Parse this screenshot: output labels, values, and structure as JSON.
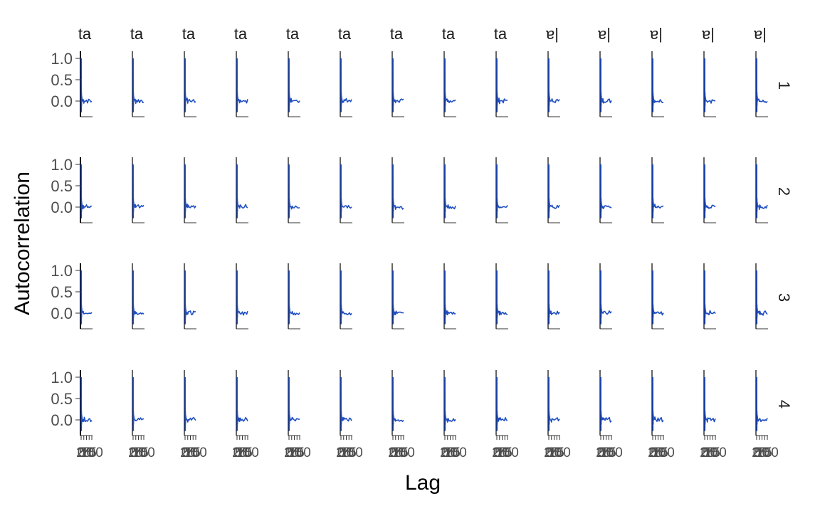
{
  "chart_data": {
    "type": "line",
    "title": "",
    "xlabel": "Lag",
    "ylabel": "Autocorrelation",
    "ylim": [
      -0.35,
      1.05
    ],
    "yticks": [
      "1.0",
      "0.5",
      "0.0"
    ],
    "xtick_labels": [
      "0",
      "25",
      "50",
      "75",
      "100"
    ],
    "xlim": [
      0,
      100
    ],
    "facet_columns": [
      "ta",
      "ta",
      "ta",
      "ta",
      "ta",
      "ta",
      "ta",
      "ta",
      "ta",
      "ɐ|",
      "ɐ|",
      "ɐ|",
      "ɐ|",
      "ɐ|"
    ],
    "facet_rows": [
      "1",
      "2",
      "3",
      "4"
    ],
    "line_color": "#1f4fc2",
    "spike_color": "#0a1a5c",
    "grid": false,
    "series_shape": {
      "lag": [
        0,
        1,
        2,
        3,
        4,
        5,
        6,
        7,
        8,
        9,
        10,
        15,
        20,
        25,
        30,
        40,
        50,
        60,
        70,
        80,
        90,
        100
      ],
      "acf": [
        1.0,
        0.15,
        -0.25,
        0.2,
        -0.1,
        0.12,
        0.05,
        0.08,
        0.0,
        0.05,
        0.02,
        0.0,
        0.03,
        -0.02,
        0.02,
        0.0,
        0.02,
        -0.01,
        0.01,
        0.02,
        -0.01,
        0.01
      ]
    }
  }
}
